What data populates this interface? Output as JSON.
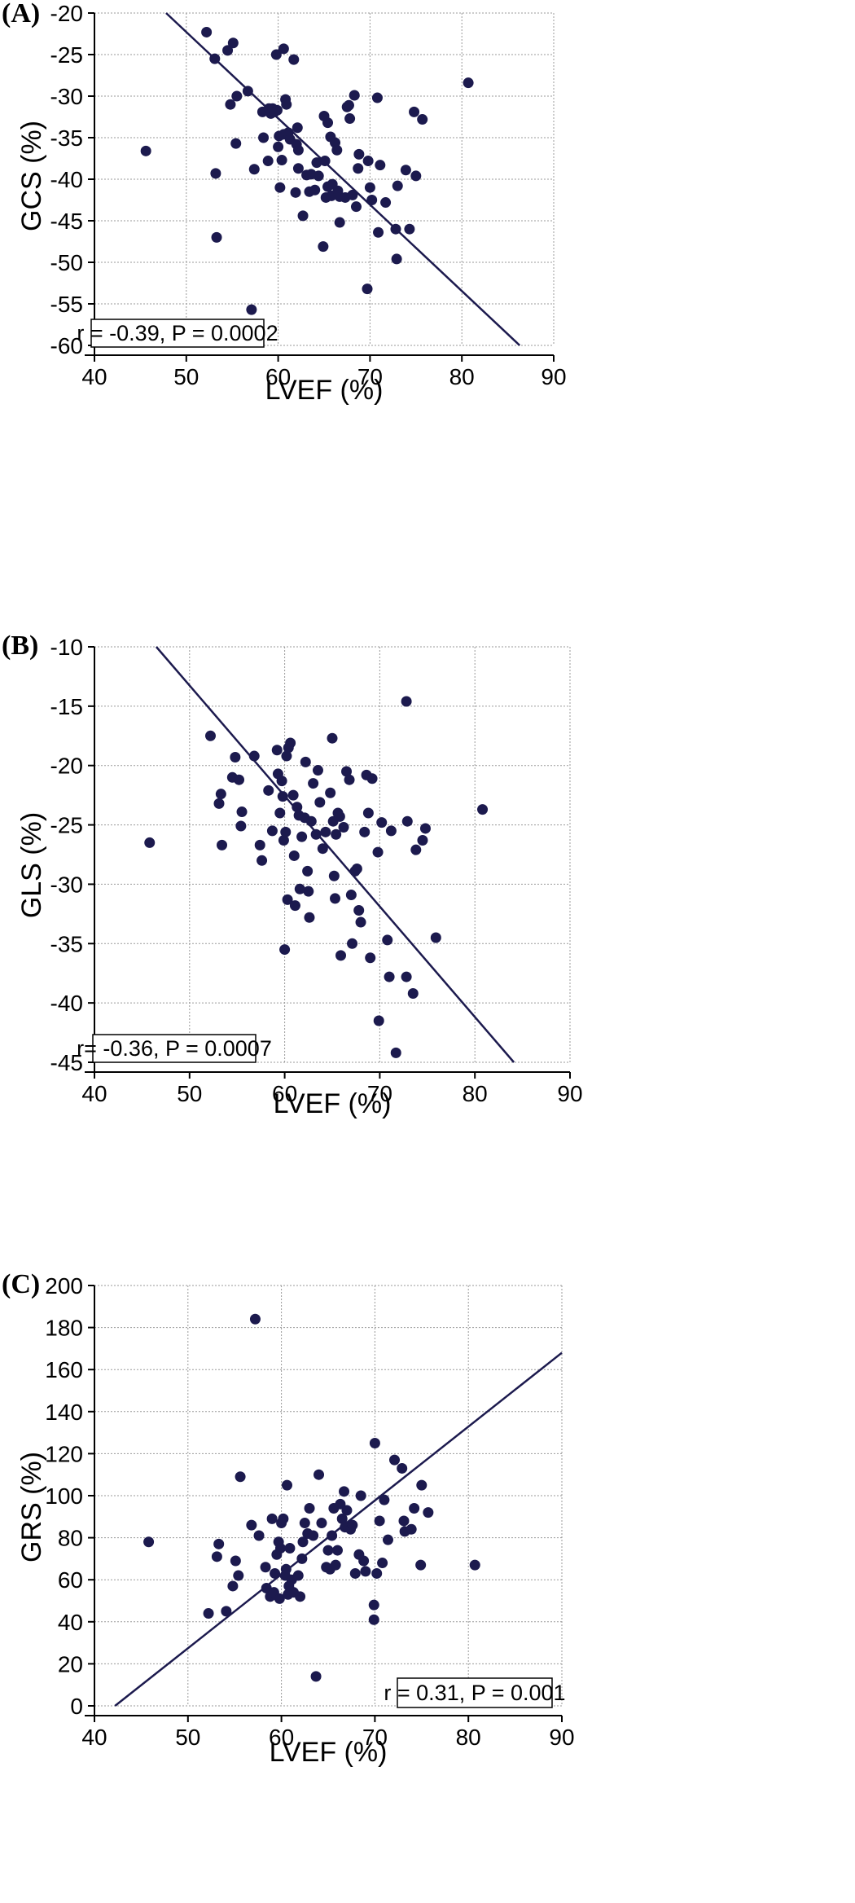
{
  "chart_data": [
    {
      "type": "scatter",
      "panel_label": "(A)",
      "xlabel": "LVEF (%)",
      "ylabel": "GCS (%)",
      "xlim": [
        40,
        90
      ],
      "ylim": [
        -60,
        -20
      ],
      "xticks": [
        40,
        50,
        60,
        70,
        80,
        90
      ],
      "yticks": [
        -60,
        -55,
        -50,
        -45,
        -40,
        -35,
        -30,
        -25,
        -20
      ],
      "grid": true,
      "annotation": "r = -0.39, P = 0.0002",
      "annotation_position": "bottom-left",
      "regression_line": {
        "x": [
          47.8,
          86.3
        ],
        "y": [
          -20,
          -60
        ]
      },
      "points": [
        [
          45.6,
          -36.6
        ],
        [
          52.2,
          -22.3
        ],
        [
          53.1,
          -25.5
        ],
        [
          53.2,
          -39.3
        ],
        [
          53.3,
          -47.0
        ],
        [
          54.5,
          -24.5
        ],
        [
          54.8,
          -31.0
        ],
        [
          55.1,
          -23.6
        ],
        [
          55.4,
          -35.7
        ],
        [
          55.5,
          -30.0
        ],
        [
          56.7,
          -29.4
        ],
        [
          57.1,
          -55.7
        ],
        [
          57.4,
          -38.8
        ],
        [
          58.3,
          -31.9
        ],
        [
          58.4,
          -35.0
        ],
        [
          58.9,
          -37.8
        ],
        [
          59.0,
          -31.5
        ],
        [
          59.2,
          -32.1
        ],
        [
          59.4,
          -31.5
        ],
        [
          59.6,
          -31.9
        ],
        [
          59.8,
          -25.0
        ],
        [
          59.9,
          -31.7
        ],
        [
          60.0,
          -36.1
        ],
        [
          60.1,
          -34.8
        ],
        [
          60.2,
          -41.0
        ],
        [
          60.4,
          -37.7
        ],
        [
          60.6,
          -34.6
        ],
        [
          60.6,
          -24.3
        ],
        [
          60.8,
          -30.4
        ],
        [
          60.9,
          -31.0
        ],
        [
          61.1,
          -34.4
        ],
        [
          61.3,
          -35.2
        ],
        [
          61.7,
          -25.6
        ],
        [
          61.9,
          -41.6
        ],
        [
          62.0,
          -35.8
        ],
        [
          62.1,
          -33.8
        ],
        [
          62.2,
          -36.5
        ],
        [
          62.2,
          -38.7
        ],
        [
          62.7,
          -44.4
        ],
        [
          63.1,
          -39.5
        ],
        [
          63.4,
          -41.5
        ],
        [
          63.6,
          -39.4
        ],
        [
          64.0,
          -41.3
        ],
        [
          64.2,
          -38.0
        ],
        [
          64.4,
          -39.6
        ],
        [
          64.9,
          -48.1
        ],
        [
          65.0,
          -32.4
        ],
        [
          65.1,
          -37.8
        ],
        [
          65.2,
          -42.2
        ],
        [
          65.4,
          -33.2
        ],
        [
          65.4,
          -40.9
        ],
        [
          65.7,
          -34.9
        ],
        [
          65.8,
          -42.0
        ],
        [
          65.9,
          -40.6
        ],
        [
          66.2,
          -35.6
        ],
        [
          66.4,
          -36.5
        ],
        [
          66.5,
          -41.4
        ],
        [
          66.7,
          -45.2
        ],
        [
          66.7,
          -42.1
        ],
        [
          67.3,
          -42.2
        ],
        [
          67.5,
          -31.3
        ],
        [
          67.7,
          -31.1
        ],
        [
          67.8,
          -32.7
        ],
        [
          68.1,
          -41.9
        ],
        [
          68.3,
          -29.9
        ],
        [
          68.5,
          -43.3
        ],
        [
          68.7,
          -38.7
        ],
        [
          68.8,
          -37.0
        ],
        [
          69.7,
          -53.2
        ],
        [
          69.8,
          -37.8
        ],
        [
          70.0,
          -41.0
        ],
        [
          70.2,
          -42.5
        ],
        [
          70.8,
          -30.2
        ],
        [
          70.9,
          -46.4
        ],
        [
          71.1,
          -38.3
        ],
        [
          71.7,
          -42.8
        ],
        [
          72.8,
          -46.0
        ],
        [
          72.9,
          -49.6
        ],
        [
          73.0,
          -40.8
        ],
        [
          73.9,
          -38.9
        ],
        [
          74.3,
          -46.0
        ],
        [
          74.8,
          -31.9
        ],
        [
          75.0,
          -39.6
        ],
        [
          75.7,
          -32.8
        ],
        [
          80.7,
          -28.4
        ]
      ]
    },
    {
      "type": "scatter",
      "panel_label": "(B)",
      "xlabel": "LVEF (%)",
      "ylabel": "GLS (%)",
      "xlim": [
        40,
        90
      ],
      "ylim": [
        -45,
        -10
      ],
      "xticks": [
        40,
        50,
        60,
        70,
        80,
        90
      ],
      "yticks": [
        -45,
        -40,
        -35,
        -30,
        -25,
        -20,
        -15,
        -10
      ],
      "grid": true,
      "annotation": "r= -0.36, P = 0.0007",
      "annotation_position": "bottom-left",
      "regression_line": {
        "x": [
          46.5,
          84.1
        ],
        "y": [
          -10,
          -45
        ]
      },
      "points": [
        [
          45.8,
          -26.5
        ],
        [
          52.2,
          -17.5
        ],
        [
          53.1,
          -23.2
        ],
        [
          53.3,
          -22.4
        ],
        [
          53.4,
          -26.7
        ],
        [
          54.5,
          -21.0
        ],
        [
          54.8,
          -19.3
        ],
        [
          55.2,
          -21.2
        ],
        [
          55.4,
          -25.1
        ],
        [
          55.5,
          -23.9
        ],
        [
          56.8,
          -19.2
        ],
        [
          57.4,
          -26.7
        ],
        [
          57.6,
          -28.0
        ],
        [
          58.3,
          -22.1
        ],
        [
          58.7,
          -25.5
        ],
        [
          59.2,
          -18.7
        ],
        [
          59.3,
          -20.7
        ],
        [
          59.5,
          -24.0
        ],
        [
          59.7,
          -21.3
        ],
        [
          59.8,
          -22.6
        ],
        [
          59.9,
          -26.3
        ],
        [
          60.0,
          -35.5
        ],
        [
          60.1,
          -25.6
        ],
        [
          60.2,
          -19.2
        ],
        [
          60.3,
          -31.3
        ],
        [
          60.4,
          -18.5
        ],
        [
          60.6,
          -18.1
        ],
        [
          60.9,
          -22.5
        ],
        [
          61.0,
          -27.6
        ],
        [
          61.1,
          -31.8
        ],
        [
          61.3,
          -23.5
        ],
        [
          61.5,
          -24.2
        ],
        [
          61.6,
          -30.4
        ],
        [
          61.8,
          -26.0
        ],
        [
          62.1,
          -24.4
        ],
        [
          62.2,
          -19.7
        ],
        [
          62.4,
          -28.9
        ],
        [
          62.5,
          -30.6
        ],
        [
          62.6,
          -32.8
        ],
        [
          62.8,
          -24.7
        ],
        [
          63.0,
          -21.5
        ],
        [
          63.3,
          -25.8
        ],
        [
          63.5,
          -20.4
        ],
        [
          63.7,
          -23.1
        ],
        [
          64.0,
          -27.0
        ],
        [
          64.3,
          -25.6
        ],
        [
          64.8,
          -22.3
        ],
        [
          65.0,
          -17.7
        ],
        [
          65.1,
          -24.7
        ],
        [
          65.2,
          -29.3
        ],
        [
          65.3,
          -31.2
        ],
        [
          65.4,
          -25.8
        ],
        [
          65.6,
          -24.0
        ],
        [
          65.8,
          -24.3
        ],
        [
          65.9,
          -36.0
        ],
        [
          66.2,
          -25.2
        ],
        [
          66.5,
          -20.5
        ],
        [
          66.8,
          -21.2
        ],
        [
          67.0,
          -30.9
        ],
        [
          67.1,
          -35.0
        ],
        [
          67.4,
          -28.9
        ],
        [
          67.6,
          -28.7
        ],
        [
          67.8,
          -32.2
        ],
        [
          68.0,
          -33.2
        ],
        [
          68.4,
          -25.6
        ],
        [
          68.6,
          -20.8
        ],
        [
          68.8,
          -24.0
        ],
        [
          69.0,
          -36.2
        ],
        [
          69.2,
          -21.1
        ],
        [
          69.8,
          -27.3
        ],
        [
          69.9,
          -41.5
        ],
        [
          70.2,
          -24.8
        ],
        [
          70.8,
          -34.7
        ],
        [
          71.0,
          -37.8
        ],
        [
          71.2,
          -25.5
        ],
        [
          71.7,
          -44.2
        ],
        [
          72.8,
          -37.8
        ],
        [
          72.8,
          -14.6
        ],
        [
          72.9,
          -24.7
        ],
        [
          73.5,
          -39.2
        ],
        [
          73.8,
          -27.1
        ],
        [
          74.5,
          -26.3
        ],
        [
          74.8,
          -25.3
        ],
        [
          75.9,
          -34.5
        ],
        [
          80.8,
          -23.7
        ]
      ]
    },
    {
      "type": "scatter",
      "panel_label": "(C)",
      "xlabel": "LVEF (%)",
      "ylabel": "GRS (%)",
      "xlim": [
        40,
        90
      ],
      "ylim": [
        0,
        200
      ],
      "xticks": [
        40,
        50,
        60,
        70,
        80,
        90
      ],
      "yticks": [
        0,
        20,
        40,
        60,
        80,
        100,
        120,
        140,
        160,
        180,
        200
      ],
      "grid": true,
      "annotation": "r = 0.31, P = 0.001",
      "annotation_position": "bottom-right",
      "regression_line": {
        "x": [
          42.2,
          90
        ],
        "y": [
          0,
          168
        ]
      },
      "points": [
        [
          45.8,
          78
        ],
        [
          52.2,
          44
        ],
        [
          53.1,
          71
        ],
        [
          53.3,
          77
        ],
        [
          54.1,
          45
        ],
        [
          54.8,
          57
        ],
        [
          55.1,
          69
        ],
        [
          55.4,
          62
        ],
        [
          55.6,
          109
        ],
        [
          56.8,
          86
        ],
        [
          57.2,
          184
        ],
        [
          57.6,
          81
        ],
        [
          58.3,
          66
        ],
        [
          58.4,
          56
        ],
        [
          58.8,
          52
        ],
        [
          59.0,
          89
        ],
        [
          59.2,
          54
        ],
        [
          59.3,
          63
        ],
        [
          59.5,
          72
        ],
        [
          59.7,
          78
        ],
        [
          59.8,
          51
        ],
        [
          59.9,
          75
        ],
        [
          60.0,
          87
        ],
        [
          60.2,
          89
        ],
        [
          60.4,
          62
        ],
        [
          60.5,
          65
        ],
        [
          60.6,
          105
        ],
        [
          60.7,
          53
        ],
        [
          60.8,
          57
        ],
        [
          60.9,
          75
        ],
        [
          61.1,
          60
        ],
        [
          61.3,
          54
        ],
        [
          61.8,
          62
        ],
        [
          62.0,
          52
        ],
        [
          62.2,
          70
        ],
        [
          62.3,
          78
        ],
        [
          62.5,
          87
        ],
        [
          62.8,
          82
        ],
        [
          63.0,
          94
        ],
        [
          63.4,
          81
        ],
        [
          63.7,
          14
        ],
        [
          64.0,
          110
        ],
        [
          64.3,
          87
        ],
        [
          64.8,
          66
        ],
        [
          65.0,
          74
        ],
        [
          65.2,
          65
        ],
        [
          65.4,
          81
        ],
        [
          65.6,
          94
        ],
        [
          65.8,
          67
        ],
        [
          66.0,
          74
        ],
        [
          66.3,
          96
        ],
        [
          66.5,
          89
        ],
        [
          66.7,
          102
        ],
        [
          66.8,
          85
        ],
        [
          67.0,
          93
        ],
        [
          67.4,
          84
        ],
        [
          67.6,
          86
        ],
        [
          67.9,
          63
        ],
        [
          68.3,
          72
        ],
        [
          68.5,
          100
        ],
        [
          68.8,
          69
        ],
        [
          69.0,
          64
        ],
        [
          69.9,
          48
        ],
        [
          69.9,
          41
        ],
        [
          70.0,
          125
        ],
        [
          70.2,
          63
        ],
        [
          70.5,
          88
        ],
        [
          70.8,
          68
        ],
        [
          71.0,
          98
        ],
        [
          71.4,
          79
        ],
        [
          72.1,
          117
        ],
        [
          72.9,
          113
        ],
        [
          73.1,
          88
        ],
        [
          73.2,
          83
        ],
        [
          73.9,
          84
        ],
        [
          74.2,
          94
        ],
        [
          74.9,
          67
        ],
        [
          75.0,
          105
        ],
        [
          75.7,
          92
        ],
        [
          80.7,
          67
        ]
      ]
    }
  ]
}
